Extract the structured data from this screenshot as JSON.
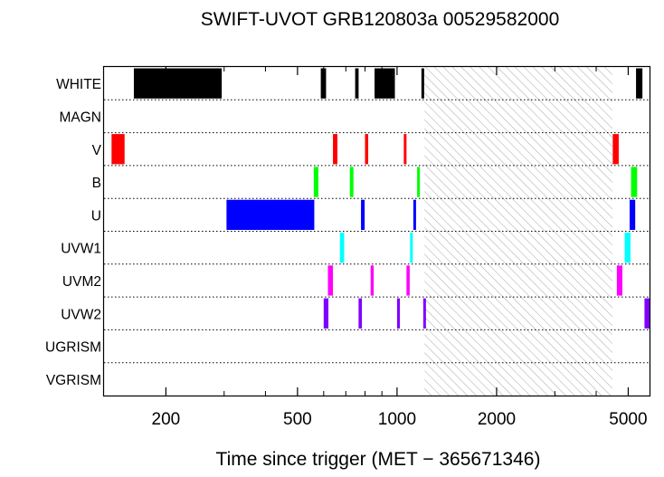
{
  "chart_data": {
    "type": "timeline",
    "title": "SWIFT-UVOT GRB120803a 00529582000",
    "xlabel": "Time since trigger (MET − 365671346)",
    "xscale": "log",
    "xlim": [
      130,
      5800
    ],
    "xticks": [
      {
        "value": 200,
        "label": "200"
      },
      {
        "value": 500,
        "label": "500"
      },
      {
        "value": 1000,
        "label": "1000"
      },
      {
        "value": 2000,
        "label": "2000"
      },
      {
        "value": 5000,
        "label": "5000"
      }
    ],
    "minor_xticks": [
      300,
      400,
      600,
      700,
      800,
      900,
      3000,
      4000
    ],
    "hatched_interval": [
      1210,
      4480
    ],
    "filters": [
      {
        "name": "WHITE",
        "color": "#000000",
        "exposures": [
          [
            160,
            295
          ],
          [
            588,
            610
          ],
          [
            747,
            765
          ],
          [
            855,
            985
          ],
          [
            1185,
            1205
          ],
          [
            5280,
            5520
          ]
        ]
      },
      {
        "name": "MAGN",
        "color": "#000000",
        "exposures": []
      },
      {
        "name": "V",
        "color": "#ff0000",
        "exposures": [
          [
            137,
            150
          ],
          [
            640,
            660
          ],
          [
            800,
            818
          ],
          [
            1048,
            1066
          ],
          [
            4490,
            4680
          ]
        ]
      },
      {
        "name": "B",
        "color": "#00ff00",
        "exposures": [
          [
            560,
            578
          ],
          [
            720,
            738
          ],
          [
            1150,
            1172
          ],
          [
            5100,
            5320
          ]
        ]
      },
      {
        "name": "U",
        "color": "#0000ff",
        "exposures": [
          [
            305,
            562
          ],
          [
            778,
            798
          ],
          [
            1120,
            1140
          ],
          [
            5050,
            5250
          ]
        ]
      },
      {
        "name": "UVW1",
        "color": "#00ffff",
        "exposures": [
          [
            672,
            692
          ],
          [
            1095,
            1115
          ],
          [
            4880,
            5080
          ]
        ]
      },
      {
        "name": "UVM2",
        "color": "#ff00ff",
        "exposures": [
          [
            618,
            640
          ],
          [
            832,
            850
          ],
          [
            1068,
            1092
          ],
          [
            4620,
            4800
          ]
        ]
      },
      {
        "name": "UVW2",
        "color": "#8000ff",
        "exposures": [
          [
            600,
            620
          ],
          [
            765,
            783
          ],
          [
            1000,
            1020
          ],
          [
            1200,
            1215
          ],
          [
            5600,
            5800
          ]
        ]
      },
      {
        "name": "UGRISM",
        "color": "#000000",
        "exposures": []
      },
      {
        "name": "VGRISM",
        "color": "#000000",
        "exposures": []
      }
    ]
  }
}
